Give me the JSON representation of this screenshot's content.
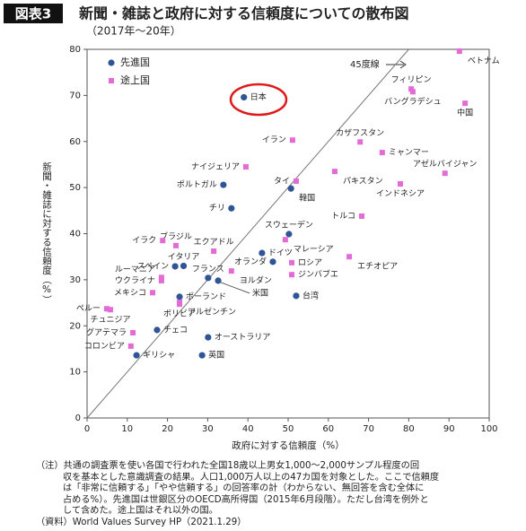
{
  "chart_data": {
    "type": "scatter",
    "figure_label": "図表3",
    "title": "新聞・雑誌と政府に対する信頼度についての散布図",
    "subtitle": "（2017年～20年）",
    "x_label": "政府に対する信頼度（%）",
    "y_label": "新聞・雑誌に対する信頼度（%）",
    "xlim": [
      0,
      100
    ],
    "ylim": [
      0,
      80
    ],
    "xticks": [
      0,
      10,
      20,
      30,
      40,
      50,
      60,
      70,
      80,
      90,
      100
    ],
    "yticks": [
      0,
      10,
      20,
      30,
      40,
      50,
      60,
      70,
      80
    ],
    "reference_line": {
      "label": "45度線",
      "x": [
        0,
        80
      ],
      "y": [
        0,
        80
      ]
    },
    "series": [
      {
        "name": "先進国",
        "color": "#2f5597",
        "marker": "circle",
        "labels": [
          "日本",
          "ポルトガル",
          "チリ",
          "韓国",
          "スウェーデン",
          "ドイツ",
          "オランダ",
          "スペイン",
          "イタリア",
          "フランス",
          "米国",
          "ポーランド",
          "オーストラリア",
          "チェコ",
          "英国",
          "ギリシャ",
          "台湾"
        ],
        "x": [
          39,
          33.9,
          35.9,
          50.7,
          50.2,
          43.5,
          46.2,
          21.9,
          24,
          30.1,
          32.6,
          23,
          30.1,
          17.4,
          28.6,
          12.3,
          52
        ],
        "values": [
          69.6,
          50.6,
          45.5,
          49.8,
          39.9,
          35.8,
          33.9,
          32.9,
          33,
          30.4,
          29.8,
          26.3,
          17.5,
          19.1,
          13.6,
          13.6,
          26.5
        ]
      },
      {
        "name": "途上国",
        "color": "#e36bd6",
        "marker": "square",
        "labels": [
          "ベトナム",
          "フィリピン",
          "バングラデシュ",
          "中国",
          "イラン",
          "カザフスタン",
          "ミャンマー",
          "ナイジェリア",
          "タイ",
          "パキスタン",
          "アゼルバイジャン",
          "インドネシア",
          "トルコ",
          "ブラジル",
          "イラク",
          "エクアドル",
          "マレーシア",
          "エチオピア",
          "ロシア",
          "ジンバブエ",
          "ヨルダン",
          "ルーマニア",
          "ウクライナ",
          "メキシコ",
          "アルゼンチン",
          "ボリビア",
          "ペルー",
          "チュニジア",
          "グアテマラ",
          "コロンビア"
        ],
        "x": [
          92.6,
          80.6,
          81,
          94,
          51.1,
          67.9,
          73.4,
          39.5,
          52,
          61.6,
          89,
          77.9,
          68.3,
          22.1,
          18.8,
          31.5,
          49.3,
          65.2,
          50.9,
          50.9,
          35.9,
          18.5,
          18.5,
          16.3,
          23,
          23,
          4.9,
          5.8,
          11.4,
          10.9
        ],
        "values": [
          79.6,
          71.4,
          70.8,
          68.3,
          60.3,
          59.9,
          57.6,
          54.5,
          51.4,
          53.5,
          53.1,
          50.8,
          43.8,
          37.4,
          38.5,
          36.2,
          38.7,
          35,
          33.7,
          31.1,
          31.9,
          30.5,
          29.8,
          27.2,
          25.1,
          24.7,
          23.7,
          23.5,
          18.5,
          15.6
        ]
      }
    ],
    "notes": [
      "（注）共通の調査票を使い各国で行われた全国18歳以上男女1,000～2,000サンプル程度の回",
      "収を基本とした意識調査の結果。人口1,000万人以上の47カ国を対象とした。ここで信頼度",
      "は「非常に信頼する」「やや信頼する」の回答率の計（わからない、無回答を含む全体に",
      "占める%）。先進国は世銀区分のOECD高所得国（2015年6月段階）。ただし台湾を例外と",
      "して含めた。途上国はそれ以外の国。",
      "（資料）World Values Survey HP（2021.1.29）"
    ]
  }
}
